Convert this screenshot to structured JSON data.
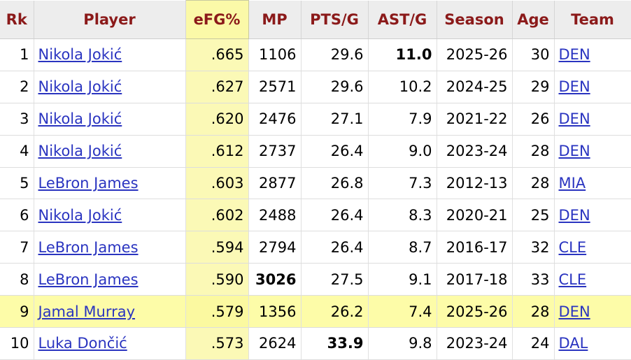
{
  "table": {
    "headers": [
      "Rk",
      "Player",
      "eFG%",
      "MP",
      "PTS/G",
      "AST/G",
      "Season",
      "Age",
      "Team"
    ],
    "rows": [
      {
        "rk": "1",
        "player": "Nikola Jokić",
        "efg": ".665",
        "mp": "1106",
        "pts": "29.6",
        "ast": "11.0",
        "season": "2025-26",
        "age": "30",
        "team": "DEN"
      },
      {
        "rk": "2",
        "player": "Nikola Jokić",
        "efg": ".627",
        "mp": "2571",
        "pts": "29.6",
        "ast": "10.2",
        "season": "2024-25",
        "age": "29",
        "team": "DEN"
      },
      {
        "rk": "3",
        "player": "Nikola Jokić",
        "efg": ".620",
        "mp": "2476",
        "pts": "27.1",
        "ast": "7.9",
        "season": "2021-22",
        "age": "26",
        "team": "DEN"
      },
      {
        "rk": "4",
        "player": "Nikola Jokić",
        "efg": ".612",
        "mp": "2737",
        "pts": "26.4",
        "ast": "9.0",
        "season": "2023-24",
        "age": "28",
        "team": "DEN"
      },
      {
        "rk": "5",
        "player": "LeBron James",
        "efg": ".603",
        "mp": "2877",
        "pts": "26.8",
        "ast": "7.3",
        "season": "2012-13",
        "age": "28",
        "team": "MIA"
      },
      {
        "rk": "6",
        "player": "Nikola Jokić",
        "efg": ".602",
        "mp": "2488",
        "pts": "26.4",
        "ast": "8.3",
        "season": "2020-21",
        "age": "25",
        "team": "DEN"
      },
      {
        "rk": "7",
        "player": "LeBron James",
        "efg": ".594",
        "mp": "2794",
        "pts": "26.4",
        "ast": "8.7",
        "season": "2016-17",
        "age": "32",
        "team": "CLE"
      },
      {
        "rk": "8",
        "player": "LeBron James",
        "efg": ".590",
        "mp": "3026",
        "pts": "27.5",
        "ast": "9.1",
        "season": "2017-18",
        "age": "33",
        "team": "CLE"
      },
      {
        "rk": "9",
        "player": "Jamal Murray",
        "efg": ".579",
        "mp": "1356",
        "pts": "26.2",
        "ast": "7.4",
        "season": "2025-26",
        "age": "28",
        "team": "DEN"
      },
      {
        "rk": "10",
        "player": "Luka Dončić",
        "efg": ".573",
        "mp": "2624",
        "pts": "33.9",
        "ast": "9.8",
        "season": "2023-24",
        "age": "24",
        "team": "DAL"
      }
    ]
  }
}
